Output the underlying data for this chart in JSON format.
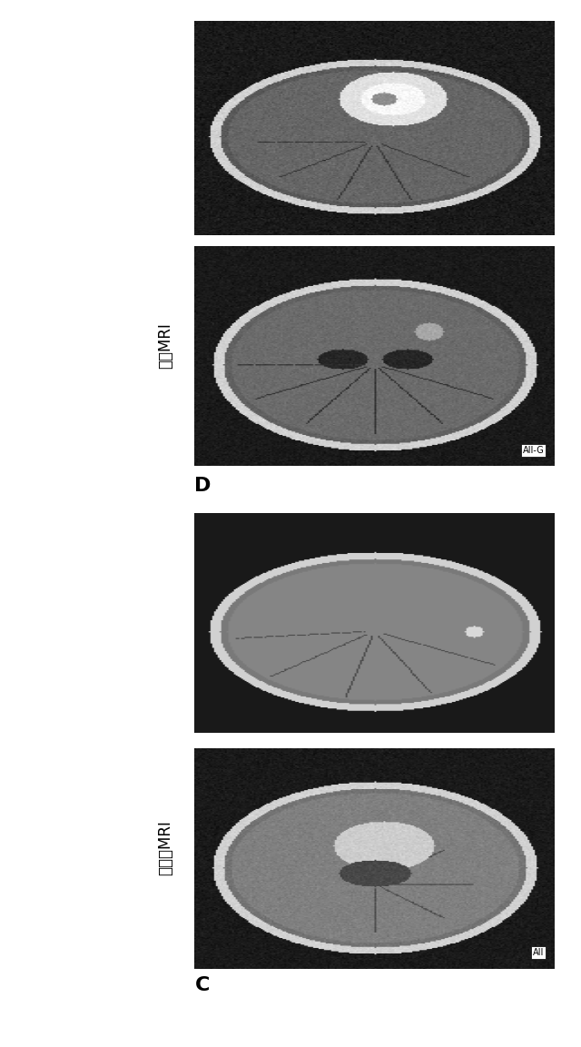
{
  "bg_color": "#ffffff",
  "label_C": "C",
  "label_D": "D",
  "label_left": "非増強MRI",
  "label_right": "増強MRI",
  "label_AII": "AII",
  "label_AII_G": "AII-G",
  "fig_width": 6.4,
  "fig_height": 11.53
}
